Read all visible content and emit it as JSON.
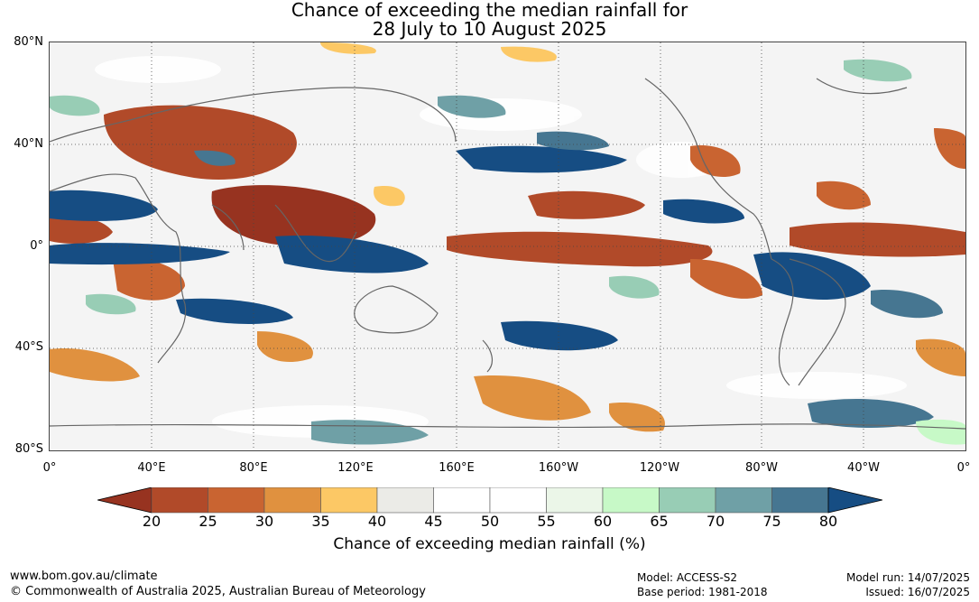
{
  "title": {
    "line1": "Chance of exceeding the median rainfall for",
    "line2": "28 July to 10 August 2025"
  },
  "map": {
    "lat_labels": [
      "80°N",
      "40°N",
      "0°",
      "40°S",
      "80°S"
    ],
    "lon_labels": [
      "0°",
      "40°E",
      "80°E",
      "120°E",
      "160°E",
      "160°W",
      "120°W",
      "80°W",
      "40°W",
      "0°"
    ],
    "colors": {
      "ocean_background": "#f4f4f4",
      "coast": "#666666",
      "grid": "#444444"
    }
  },
  "legend": {
    "ticks": [
      "20",
      "25",
      "30",
      "35",
      "40",
      "45",
      "50",
      "55",
      "60",
      "65",
      "70",
      "75",
      "80"
    ],
    "colors": [
      "#973320",
      "#b14a29",
      "#c96431",
      "#e0913f",
      "#fcc865",
      "#ebebe7",
      "#ffffff",
      "#ffffff",
      "#ebf6e8",
      "#c7f9c7",
      "#98cdb5",
      "#6fa0a6",
      "#467691",
      "#164d83"
    ],
    "label": "Chance of exceeding median rainfall (%)"
  },
  "footer": {
    "website": "www.bom.gov.au/climate",
    "copyright": "© Commonwealth of Australia 2025, Australian Bureau of Meteorology",
    "model": "Model: ACCESS-S2",
    "base_period": "Base period: 1981-2018",
    "model_run": "Model run: 14/07/2025",
    "issued": "Issued: 16/07/2025"
  }
}
